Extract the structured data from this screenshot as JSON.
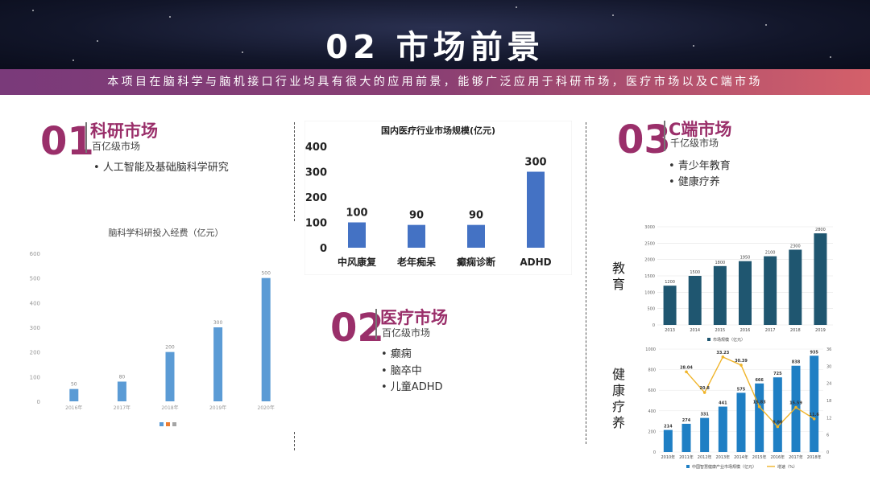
{
  "title": "02 市场前景",
  "banner": "本项目在脑科学与脑机接口行业均具有很大的应用前景，能够广泛应用于科研市场，医疗市场以及C端市场",
  "sections": [
    {
      "num": "01",
      "title": "科研市场",
      "subtitle": "百亿级市场",
      "bullets": [
        "• 人工智能及基础脑科学研究"
      ]
    },
    {
      "num": "02",
      "title": "医疗市场",
      "subtitle": "百亿级市场",
      "bullets": [
        "• 癫痫",
        "• 脑卒中",
        "• 儿童ADHD"
      ]
    },
    {
      "num": "03",
      "title": "C端市场",
      "subtitle": "千亿级市场",
      "bullets": [
        "• 青少年教育",
        "• 健康疗养"
      ]
    }
  ],
  "side_labels": {
    "education": "教育",
    "health": "健康疗养"
  },
  "chart_data": [
    {
      "id": "research",
      "type": "bar",
      "title": "脑科学科研投入经费（亿元）",
      "categories": [
        "2016年",
        "2017年",
        "2018年",
        "2019年",
        "2020年"
      ],
      "values": [
        50,
        80,
        200,
        300,
        500
      ],
      "ylim": [
        0,
        600
      ],
      "yticks": [
        0,
        100,
        200,
        300,
        400,
        500,
        600
      ],
      "color": "#5b9bd5",
      "grid": false,
      "legend": "bottom"
    },
    {
      "id": "medical",
      "type": "bar",
      "title": "国内医疗行业市场规模(亿元)",
      "categories": [
        "中风康复",
        "老年痴呆",
        "癫痫诊断",
        "ADHD"
      ],
      "values": [
        100,
        90,
        90,
        300
      ],
      "ylim": [
        0,
        400
      ],
      "yticks": [
        0,
        100,
        200,
        300,
        400
      ],
      "color": "#4472c4",
      "grid": false
    },
    {
      "id": "education",
      "type": "bar",
      "title": "",
      "categories": [
        "2013",
        "2014",
        "2015",
        "2016",
        "2017",
        "2018",
        "2019"
      ],
      "values": [
        1200,
        1500,
        1800,
        1950,
        2100,
        2300,
        2800
      ],
      "ylim": [
        0,
        3000
      ],
      "yticks": [
        0,
        500,
        1000,
        1500,
        2000,
        2500,
        3000
      ],
      "color": "#1f5670",
      "grid": true,
      "legend": "bottom",
      "series_name": "市场规模（亿元）"
    },
    {
      "id": "health",
      "type": "bar",
      "title": "",
      "categories": [
        "2010年",
        "2011年",
        "2012年",
        "2013年",
        "2014年",
        "2015年",
        "2016年",
        "2017年",
        "2018年"
      ],
      "series": [
        {
          "name": "中国智慧健康产业市场规模（亿元）",
          "type": "bar",
          "values": [
            214,
            274,
            331,
            441,
            575,
            666,
            725,
            838,
            935
          ],
          "color": "#1f7fc4"
        },
        {
          "name": "增速（%）",
          "type": "line",
          "values": [
            null,
            28.04,
            20.8,
            33.23,
            30.39,
            15.83,
            8.86,
            15.59,
            11.6
          ],
          "color": "#f0b429"
        }
      ],
      "ylim": [
        0,
        1000
      ],
      "yticks": [
        0,
        200,
        400,
        600,
        800,
        1000
      ],
      "y2lim": [
        0,
        36
      ],
      "y2ticks": [
        0,
        6,
        12,
        18,
        24,
        30,
        36
      ],
      "legend": "bottom"
    }
  ]
}
